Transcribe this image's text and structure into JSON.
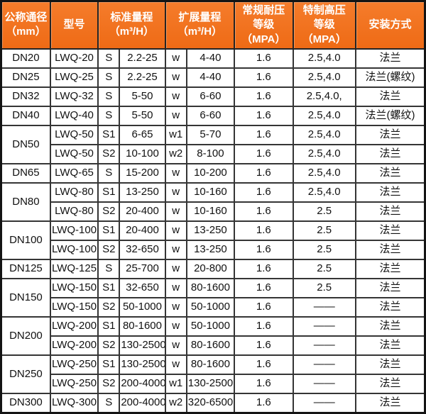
{
  "colors": {
    "header_bg": "#f06f1e",
    "header_text": "#ffffff",
    "border": "#353535",
    "body_text": "#111111"
  },
  "header": {
    "diameter": [
      "公称通径",
      "（mm）"
    ],
    "model": "型号",
    "standard_range": [
      "标准量程",
      "（m³/H）"
    ],
    "extended_range": [
      "扩展量程",
      "（m³/H）"
    ],
    "pressure_rating": [
      "常规耐压",
      "等级（MPA）"
    ],
    "high_pressure_rating": [
      "特制高压",
      "等级（MPA）"
    ],
    "installation": "安装方式"
  },
  "rows": [
    {
      "dn": "DN20",
      "model": "LWQ-20",
      "s": "S",
      "std": "2.2-25",
      "w": "w",
      "ext": "4-40",
      "pressure": "1.6",
      "hp": "2.5,4.0",
      "install": "法兰"
    },
    {
      "dn": "DN25",
      "model": "LWQ-25",
      "s": "S",
      "std": "2.2-25",
      "w": "w",
      "ext": "4-40",
      "pressure": "1.6",
      "hp": "2.5,4.0",
      "install": "法兰(螺纹)"
    },
    {
      "dn": "DN32",
      "model": "LWQ-32",
      "s": "S",
      "std": "5-50",
      "w": "w",
      "ext": "6-60",
      "pressure": "1.6",
      "hp": "2.5,4.0,",
      "install": "法兰"
    },
    {
      "dn": "DN40",
      "model": "LWQ-40",
      "s": "S",
      "std": "5-50",
      "w": "w",
      "ext": "6-60",
      "pressure": "1.6",
      "hp": "2.5,4.0",
      "install": "法兰(螺纹)"
    },
    {
      "dn": "DN50",
      "model": "LWQ-50",
      "s": "S1",
      "std": "6-65",
      "w": "w1",
      "ext": "5-70",
      "pressure": "1.6",
      "hp": "2.5,4.0",
      "install": "法兰"
    },
    {
      "model": "LWQ-50",
      "s": "S2",
      "std": "10-100",
      "w": "w2",
      "ext": "8-100",
      "pressure": "1.6",
      "hp": "2.5,4.0",
      "install": "法兰"
    },
    {
      "dn": "DN65",
      "model": "LWQ-65",
      "s": "S",
      "std": "15-200",
      "w": "w",
      "ext": "10-200",
      "pressure": "1.6",
      "hp": "2.5,4.0",
      "install": "法兰"
    },
    {
      "dn": "DN80",
      "model": "LWQ-80",
      "s": "S1",
      "std": "13-250",
      "w": "w",
      "ext": "10-160",
      "pressure": "1.6",
      "hp": "2.5,4.0",
      "install": "法兰"
    },
    {
      "model": "LWQ-80",
      "s": "S2",
      "std": "20-400",
      "w": "w",
      "ext": "10-160",
      "pressure": "1.6",
      "hp": "2.5",
      "install": "法兰"
    },
    {
      "dn": "DN100",
      "model": "LWQ-100",
      "s": "S1",
      "std": "20-400",
      "w": "w",
      "ext": "13-250",
      "pressure": "1.6",
      "hp": "2.5",
      "install": "法兰"
    },
    {
      "model": "LWQ-100",
      "s": "S2",
      "std": "32-650",
      "w": "w",
      "ext": "13-250",
      "pressure": "1.6",
      "hp": "2.5",
      "install": "法兰"
    },
    {
      "dn": "DN125",
      "model": "LWQ-125",
      "s": "S",
      "std": "25-700",
      "w": "w",
      "ext": "20-800",
      "pressure": "1.6",
      "hp": "2.5",
      "install": "法兰"
    },
    {
      "dn": "DN150",
      "model": "LWQ-150",
      "s": "S1",
      "std": "32-650",
      "w": "w",
      "ext": "80-1600",
      "pressure": "1.6",
      "hp": "2.5",
      "install": "法兰"
    },
    {
      "model": "LWQ-150",
      "s": "S2",
      "std": "50-1000",
      "w": "w",
      "ext": "50-1000",
      "pressure": "1.6",
      "hp": "——",
      "install": "法兰"
    },
    {
      "dn": "DN200",
      "model": "LWQ-200",
      "s": "S1",
      "std": "80-1600",
      "w": "w",
      "ext": "50-1000",
      "pressure": "1.6",
      "hp": "——",
      "install": "法兰"
    },
    {
      "model": "LWQ-200",
      "s": "S2",
      "std": "130-2500",
      "w": "w",
      "ext": "80-1600",
      "pressure": "1.6",
      "hp": "——",
      "install": "法兰"
    },
    {
      "dn": "DN250",
      "model": "LWQ-250",
      "s": "S1",
      "std": "130-2500",
      "w": "w",
      "ext": "80-1600",
      "pressure": "1.6",
      "hp": "——",
      "install": "法兰"
    },
    {
      "model": "LWQ-250",
      "s": "S2",
      "std": "200-4000",
      "w": "w1",
      "ext": "130-2500",
      "pressure": "1.6",
      "hp": "——",
      "install": "法兰"
    },
    {
      "dn": "DN300",
      "model": "LWQ-300",
      "s": "S",
      "std": "200-4000",
      "w": "w2",
      "ext": "320-6500",
      "pressure": "1.6",
      "hp": "——",
      "install": "法兰"
    }
  ]
}
